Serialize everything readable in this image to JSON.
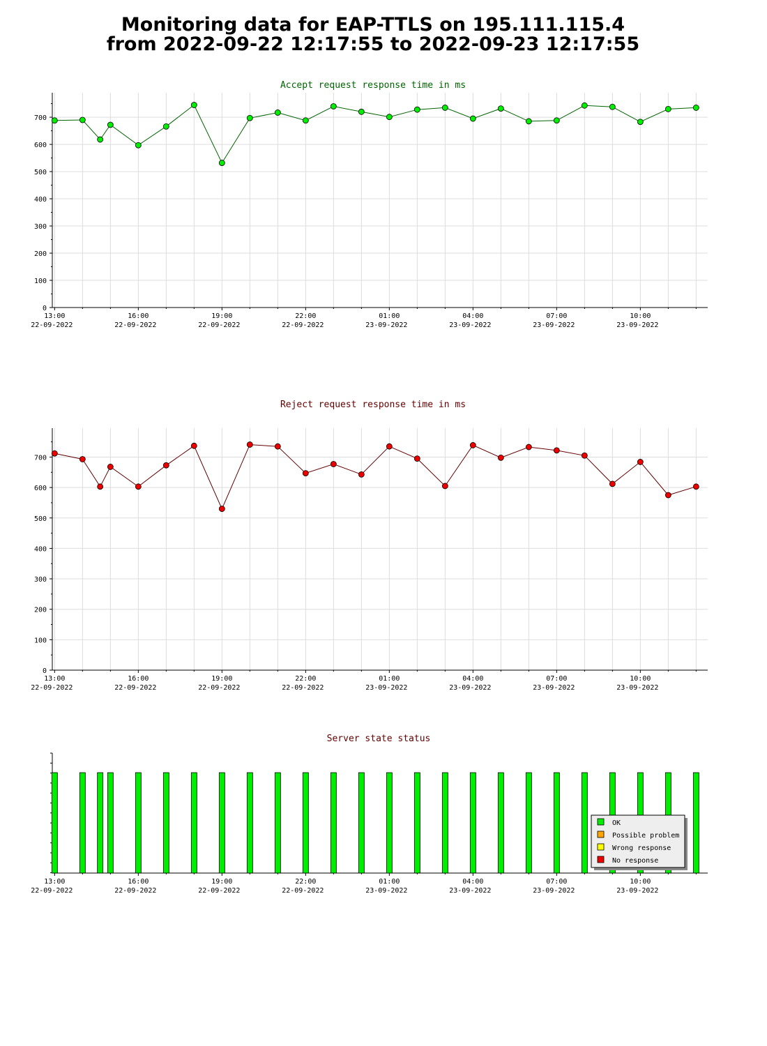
{
  "page": {
    "title_line1": "Monitoring data for EAP-TTLS on 195.111.115.4",
    "title_line2": "from 2022-09-22 12:17:55 to 2022-09-23 12:17:55"
  },
  "colors": {
    "accept_title": "#006400",
    "accept_line": "#006400",
    "accept_marker": "#00ee00",
    "reject_title": "#640000",
    "reject_line": "#640000",
    "reject_marker": "#ee0000",
    "status_title": "#640000",
    "ok": "#00ee00",
    "possible_problem": "#ffa500",
    "wrong_response": "#ffff00",
    "no_response": "#ee0000",
    "grid": "#dddddd",
    "axis": "#000000"
  },
  "x_ticks": [
    {
      "time": "13:00",
      "date": "22-09-2022"
    },
    {
      "time": "16:00",
      "date": "22-09-2022"
    },
    {
      "time": "19:00",
      "date": "22-09-2022"
    },
    {
      "time": "22:00",
      "date": "22-09-2022"
    },
    {
      "time": "01:00",
      "date": "23-09-2022"
    },
    {
      "time": "04:00",
      "date": "23-09-2022"
    },
    {
      "time": "07:00",
      "date": "23-09-2022"
    },
    {
      "time": "10:00",
      "date": "23-09-2022"
    }
  ],
  "chart_data": [
    {
      "type": "line",
      "title": "Accept request response time in ms",
      "xlabel": "",
      "ylabel": "",
      "x_range": [
        "2022-09-22 12:55",
        "2022-09-23 12:25"
      ],
      "ylim": [
        0,
        790
      ],
      "yticks": [
        0,
        100,
        200,
        300,
        400,
        500,
        600,
        700
      ],
      "grid": true,
      "x": [
        "2022-09-22 13:00",
        "2022-09-22 14:00",
        "2022-09-22 14:38",
        "2022-09-22 15:00",
        "2022-09-22 16:00",
        "2022-09-22 17:00",
        "2022-09-22 18:00",
        "2022-09-22 19:00",
        "2022-09-22 20:00",
        "2022-09-22 21:00",
        "2022-09-22 22:00",
        "2022-09-22 23:00",
        "2022-09-23 00:00",
        "2022-09-23 01:00",
        "2022-09-23 02:00",
        "2022-09-23 03:00",
        "2022-09-23 04:00",
        "2022-09-23 05:00",
        "2022-09-23 06:00",
        "2022-09-23 07:00",
        "2022-09-23 08:00",
        "2022-09-23 09:00",
        "2022-09-23 10:00",
        "2022-09-23 11:00",
        "2022-09-23 12:00"
      ],
      "values": [
        688,
        690,
        618,
        672,
        597,
        666,
        745,
        532,
        697,
        717,
        688,
        740,
        720,
        701,
        728,
        735,
        695,
        732,
        685,
        688,
        743,
        738,
        683,
        730,
        735
      ]
    },
    {
      "type": "line",
      "title": "Reject request response time in ms",
      "xlabel": "",
      "ylabel": "",
      "x_range": [
        "2022-09-22 12:55",
        "2022-09-23 12:25"
      ],
      "ylim": [
        0,
        795
      ],
      "yticks": [
        0,
        100,
        200,
        300,
        400,
        500,
        600,
        700
      ],
      "grid": true,
      "x": [
        "2022-09-22 13:00",
        "2022-09-22 14:00",
        "2022-09-22 14:38",
        "2022-09-22 15:00",
        "2022-09-22 16:00",
        "2022-09-22 17:00",
        "2022-09-22 18:00",
        "2022-09-22 19:00",
        "2022-09-22 20:00",
        "2022-09-22 21:00",
        "2022-09-22 22:00",
        "2022-09-22 23:00",
        "2022-09-23 00:00",
        "2022-09-23 01:00",
        "2022-09-23 02:00",
        "2022-09-23 03:00",
        "2022-09-23 04:00",
        "2022-09-23 05:00",
        "2022-09-23 06:00",
        "2022-09-23 07:00",
        "2022-09-23 08:00",
        "2022-09-23 09:00",
        "2022-09-23 10:00",
        "2022-09-23 11:00",
        "2022-09-23 12:00"
      ],
      "values": [
        712,
        693,
        603,
        668,
        603,
        673,
        737,
        530,
        741,
        735,
        647,
        677,
        643,
        735,
        695,
        605,
        739,
        698,
        733,
        722,
        705,
        612,
        684,
        575,
        603
      ]
    },
    {
      "type": "bar",
      "title": "Server state status",
      "x_range": [
        "2022-09-22 12:55",
        "2022-09-23 12:25"
      ],
      "x": [
        "2022-09-22 13:00",
        "2022-09-22 14:00",
        "2022-09-22 14:38",
        "2022-09-22 15:00",
        "2022-09-22 16:00",
        "2022-09-22 17:00",
        "2022-09-22 18:00",
        "2022-09-22 19:00",
        "2022-09-22 20:00",
        "2022-09-22 21:00",
        "2022-09-22 22:00",
        "2022-09-22 23:00",
        "2022-09-23 00:00",
        "2022-09-23 01:00",
        "2022-09-23 02:00",
        "2022-09-23 03:00",
        "2022-09-23 04:00",
        "2022-09-23 05:00",
        "2022-09-23 06:00",
        "2022-09-23 07:00",
        "2022-09-23 08:00",
        "2022-09-23 09:00",
        "2022-09-23 10:00",
        "2022-09-23 11:00",
        "2022-09-23 12:00"
      ],
      "states": [
        "OK",
        "OK",
        "OK",
        "OK",
        "OK",
        "OK",
        "OK",
        "OK",
        "OK",
        "OK",
        "OK",
        "OK",
        "OK",
        "OK",
        "OK",
        "OK",
        "OK",
        "OK",
        "OK",
        "OK",
        "OK",
        "OK",
        "OK",
        "OK",
        "OK"
      ],
      "legend_position": "bottom-right",
      "legend": [
        {
          "label": "OK",
          "state": "OK"
        },
        {
          "label": "Possible problem",
          "state": "Possible problem"
        },
        {
          "label": "Wrong response",
          "state": "Wrong response"
        },
        {
          "label": "No response",
          "state": "No response"
        }
      ]
    }
  ]
}
